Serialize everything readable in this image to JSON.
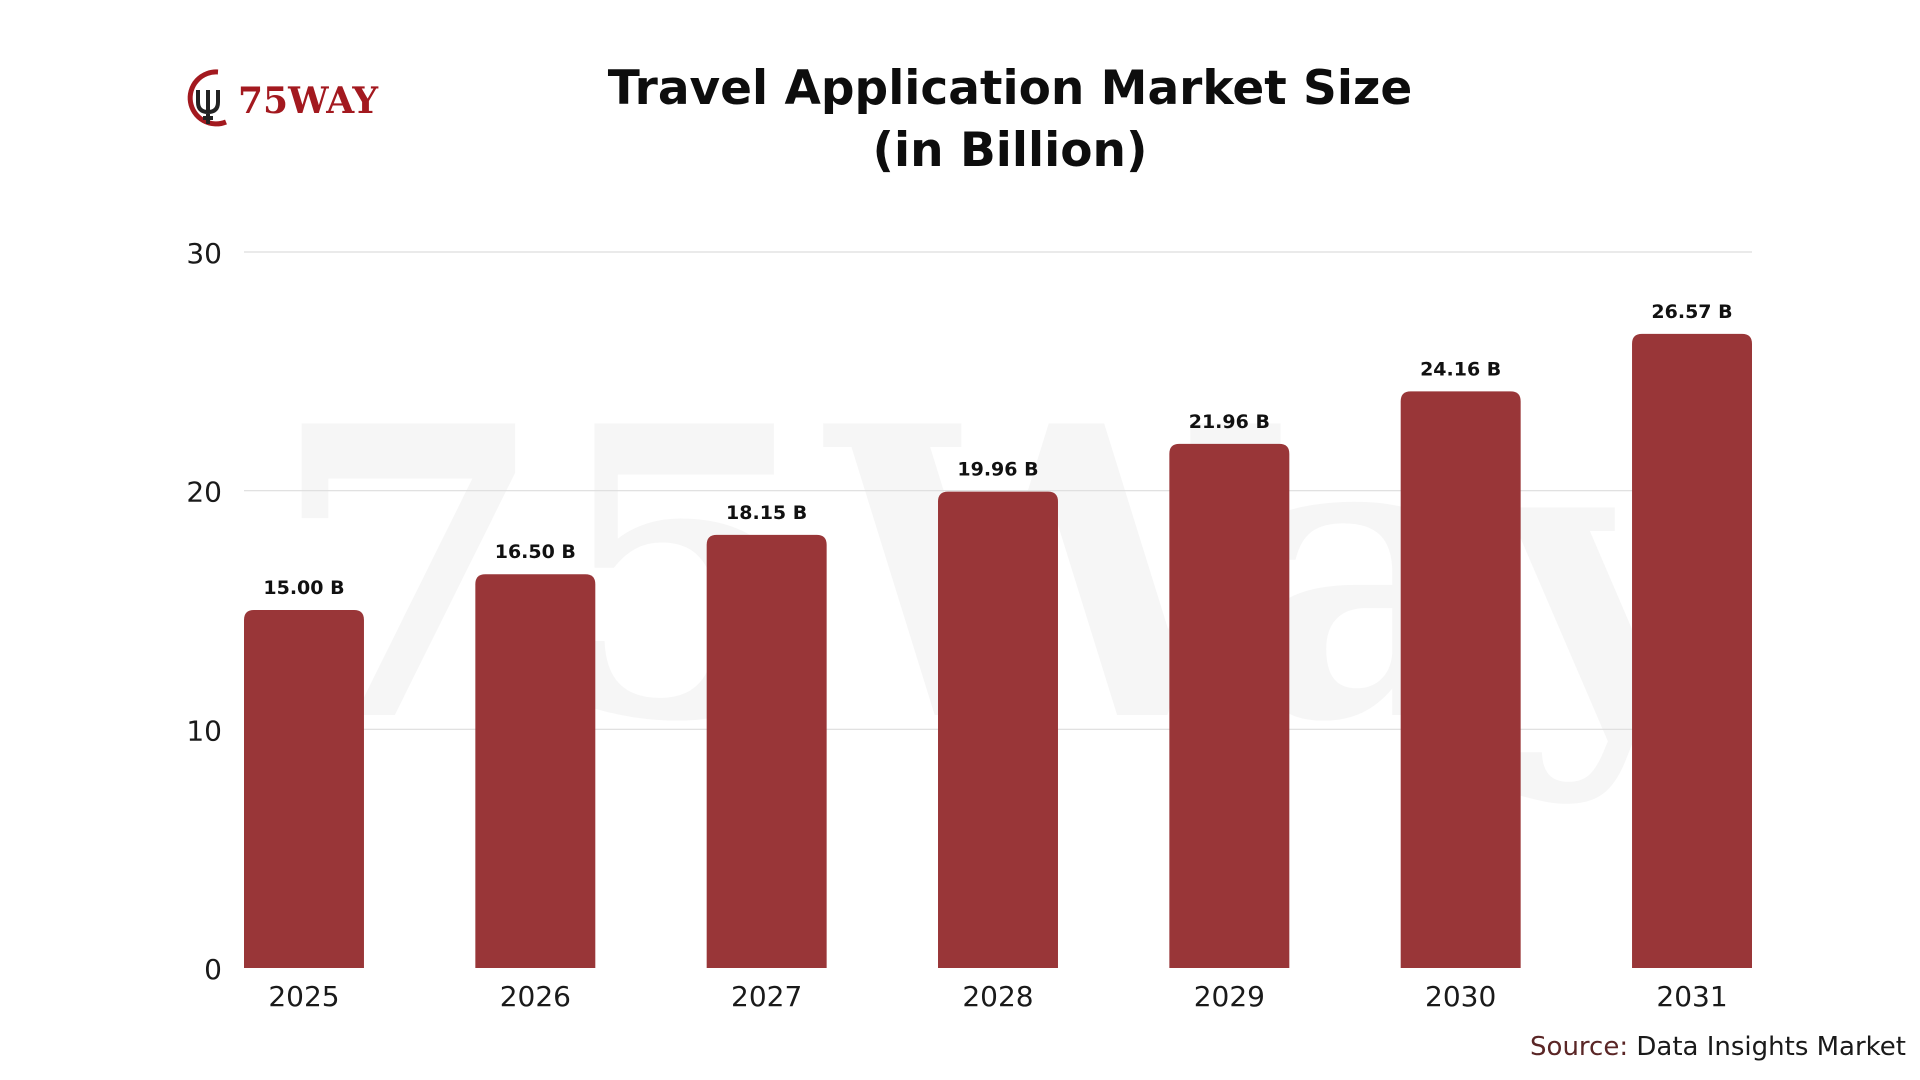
{
  "logo": {
    "text": "75WAY",
    "watermark_text": "75Way",
    "accent_color": "#a3191f",
    "dark_color": "#222222"
  },
  "chart_data": {
    "type": "bar",
    "title": "Travel Application Market Size",
    "subtitle": "(in Billion)",
    "categories": [
      "2025",
      "2026",
      "2027",
      "2028",
      "2029",
      "2030",
      "2031"
    ],
    "values": [
      15.0,
      16.5,
      18.15,
      19.96,
      21.96,
      24.16,
      26.57
    ],
    "data_labels": [
      "15.00 B",
      "16.50 B",
      "18.15 B",
      "19.96 B",
      "21.96 B",
      "24.16 B",
      "26.57 B"
    ],
    "y_ticks": [
      "0",
      "10",
      "20",
      "30"
    ],
    "ylim": [
      0,
      30
    ],
    "xlabel": "",
    "ylabel": "",
    "grid": true,
    "bar_color": "#973335",
    "grid_color": "#dddddd"
  },
  "footer": {
    "source_label": "Source:",
    "source_value": "Data Insights Market"
  }
}
